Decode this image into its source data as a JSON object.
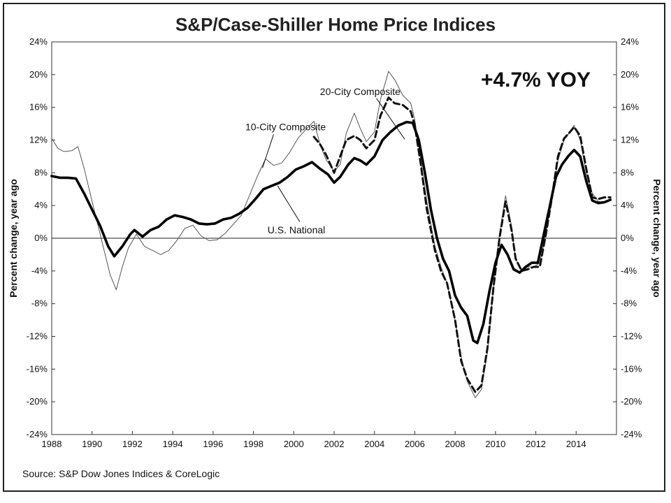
{
  "source": "Source: S&P Dow Jones Indices & CoreLogic",
  "chart_data": {
    "type": "line",
    "title": "S&P/Case-Shiller Home Price Indices",
    "ylabel_left": "Percent change, year ago",
    "ylabel_right": "Percent change, year ago",
    "xlabel": "",
    "xlim": [
      1988,
      2016
    ],
    "ylim": [
      -24,
      24
    ],
    "x_ticks": [
      "1988",
      "1990",
      "1992",
      "1994",
      "1996",
      "1998",
      "2000",
      "2002",
      "2004",
      "2006",
      "2008",
      "2010",
      "2012",
      "2014"
    ],
    "y_ticks": [
      "24%",
      "20%",
      "16%",
      "12%",
      "8%",
      "4%",
      "0%",
      "-4%",
      "-8%",
      "-12%",
      "-16%",
      "-20%",
      "-24%"
    ],
    "callout": "+4.7% YOY",
    "zero_line": true,
    "grid": false,
    "series": [
      {
        "name": "10-City Composite",
        "style": "thin",
        "color": "#555555",
        "points": [
          [
            1988.0,
            12.2
          ],
          [
            1988.3,
            11.0
          ],
          [
            1988.6,
            10.6
          ],
          [
            1989.0,
            10.7
          ],
          [
            1989.3,
            11.2
          ],
          [
            1989.6,
            8.6
          ],
          [
            1990.0,
            4.5
          ],
          [
            1990.3,
            1.5
          ],
          [
            1990.6,
            -1.5
          ],
          [
            1990.9,
            -4.5
          ],
          [
            1991.2,
            -6.3
          ],
          [
            1991.5,
            -3.5
          ],
          [
            1991.8,
            -1.2
          ],
          [
            1992.2,
            0.5
          ],
          [
            1992.6,
            -1.0
          ],
          [
            1993.0,
            -1.5
          ],
          [
            1993.4,
            -2.0
          ],
          [
            1993.8,
            -1.5
          ],
          [
            1994.2,
            -0.3
          ],
          [
            1994.6,
            1.2
          ],
          [
            1995.0,
            1.6
          ],
          [
            1995.4,
            0.3
          ],
          [
            1995.8,
            -0.3
          ],
          [
            1996.2,
            -0.2
          ],
          [
            1996.6,
            0.6
          ],
          [
            1997.0,
            1.7
          ],
          [
            1997.4,
            2.8
          ],
          [
            1997.8,
            5.2
          ],
          [
            1998.2,
            7.6
          ],
          [
            1998.6,
            9.7
          ],
          [
            1999.0,
            8.9
          ],
          [
            1999.4,
            9.2
          ],
          [
            1999.8,
            10.5
          ],
          [
            2000.2,
            12.2
          ],
          [
            2000.6,
            13.3
          ],
          [
            2001.0,
            14.3
          ],
          [
            2001.3,
            11.5
          ],
          [
            2001.6,
            9.6
          ],
          [
            2002.0,
            8.2
          ],
          [
            2002.3,
            9.0
          ],
          [
            2002.6,
            12.8
          ],
          [
            2003.0,
            15.3
          ],
          [
            2003.3,
            13.4
          ],
          [
            2003.6,
            11.8
          ],
          [
            2004.0,
            13.0
          ],
          [
            2004.3,
            17.0
          ],
          [
            2004.7,
            20.4
          ],
          [
            2005.0,
            19.4
          ],
          [
            2005.4,
            17.5
          ],
          [
            2005.8,
            16.5
          ],
          [
            2006.0,
            14.5
          ],
          [
            2006.3,
            9.5
          ],
          [
            2006.6,
            4.5
          ],
          [
            2007.0,
            -1.0
          ],
          [
            2007.3,
            -3.5
          ],
          [
            2007.6,
            -5.5
          ],
          [
            2008.0,
            -10.0
          ],
          [
            2008.3,
            -14.5
          ],
          [
            2008.6,
            -17.5
          ],
          [
            2009.0,
            -19.5
          ],
          [
            2009.3,
            -18.5
          ],
          [
            2009.6,
            -14.0
          ],
          [
            2009.9,
            -6.0
          ],
          [
            2010.2,
            0.5
          ],
          [
            2010.5,
            5.2
          ],
          [
            2010.8,
            1.5
          ],
          [
            2011.0,
            -2.5
          ],
          [
            2011.3,
            -4.0
          ],
          [
            2011.6,
            -3.5
          ],
          [
            2011.9,
            -3.5
          ],
          [
            2012.2,
            -3.0
          ],
          [
            2012.5,
            0.5
          ],
          [
            2012.8,
            5.0
          ],
          [
            2013.1,
            9.5
          ],
          [
            2013.4,
            12.0
          ],
          [
            2013.7,
            13.0
          ],
          [
            2013.9,
            13.8
          ],
          [
            2014.2,
            12.0
          ],
          [
            2014.5,
            8.0
          ],
          [
            2014.8,
            5.5
          ],
          [
            2015.1,
            4.5
          ],
          [
            2015.4,
            4.4
          ],
          [
            2015.7,
            4.6
          ]
        ]
      },
      {
        "name": "20-City Composite",
        "style": "dashed",
        "color": "#111111",
        "points": [
          [
            2001.0,
            12.4
          ],
          [
            2001.3,
            11.5
          ],
          [
            2001.6,
            10.2
          ],
          [
            2002.0,
            8.0
          ],
          [
            2002.3,
            10.0
          ],
          [
            2002.6,
            12.0
          ],
          [
            2003.0,
            12.5
          ],
          [
            2003.3,
            12.0
          ],
          [
            2003.6,
            11.0
          ],
          [
            2004.0,
            12.0
          ],
          [
            2004.3,
            15.0
          ],
          [
            2004.7,
            17.2
          ],
          [
            2005.0,
            16.5
          ],
          [
            2005.4,
            16.3
          ],
          [
            2005.8,
            15.5
          ],
          [
            2006.0,
            13.8
          ],
          [
            2006.3,
            9.0
          ],
          [
            2006.6,
            3.5
          ],
          [
            2007.0,
            -1.5
          ],
          [
            2007.3,
            -4.0
          ],
          [
            2007.6,
            -5.5
          ],
          [
            2008.0,
            -10.0
          ],
          [
            2008.3,
            -15.0
          ],
          [
            2008.6,
            -17.2
          ],
          [
            2009.0,
            -18.8
          ],
          [
            2009.3,
            -18.0
          ],
          [
            2009.6,
            -13.5
          ],
          [
            2009.9,
            -6.0
          ],
          [
            2010.2,
            0.0
          ],
          [
            2010.5,
            4.5
          ],
          [
            2010.8,
            1.0
          ],
          [
            2011.0,
            -2.5
          ],
          [
            2011.3,
            -4.0
          ],
          [
            2011.6,
            -3.8
          ],
          [
            2011.9,
            -3.5
          ],
          [
            2012.2,
            -3.5
          ],
          [
            2012.5,
            0.5
          ],
          [
            2012.8,
            5.0
          ],
          [
            2013.1,
            10.0
          ],
          [
            2013.4,
            12.2
          ],
          [
            2013.7,
            13.0
          ],
          [
            2013.9,
            13.6
          ],
          [
            2014.2,
            12.5
          ],
          [
            2014.5,
            8.5
          ],
          [
            2014.8,
            5.0
          ],
          [
            2015.1,
            4.8
          ],
          [
            2015.4,
            5.0
          ],
          [
            2015.7,
            5.0
          ]
        ]
      },
      {
        "name": "U.S. National",
        "style": "thick",
        "color": "#000000",
        "points": [
          [
            1988.0,
            7.6
          ],
          [
            1988.4,
            7.4
          ],
          [
            1988.8,
            7.4
          ],
          [
            1989.2,
            7.3
          ],
          [
            1989.6,
            5.5
          ],
          [
            1990.0,
            3.5
          ],
          [
            1990.4,
            1.5
          ],
          [
            1990.8,
            -1.0
          ],
          [
            1991.1,
            -2.2
          ],
          [
            1991.5,
            -1.0
          ],
          [
            1991.9,
            0.5
          ],
          [
            1992.1,
            1.0
          ],
          [
            1992.5,
            0.2
          ],
          [
            1992.9,
            1.0
          ],
          [
            1993.3,
            1.4
          ],
          [
            1993.7,
            2.3
          ],
          [
            1994.1,
            2.8
          ],
          [
            1994.5,
            2.6
          ],
          [
            1994.9,
            2.3
          ],
          [
            1995.3,
            1.8
          ],
          [
            1995.7,
            1.7
          ],
          [
            1996.1,
            1.8
          ],
          [
            1996.5,
            2.3
          ],
          [
            1996.9,
            2.5
          ],
          [
            1997.3,
            3.0
          ],
          [
            1997.7,
            3.7
          ],
          [
            1998.1,
            4.8
          ],
          [
            1998.5,
            6.0
          ],
          [
            1998.9,
            6.4
          ],
          [
            1999.3,
            6.8
          ],
          [
            1999.7,
            7.5
          ],
          [
            2000.1,
            8.4
          ],
          [
            2000.5,
            8.8
          ],
          [
            2000.9,
            9.3
          ],
          [
            2001.3,
            8.5
          ],
          [
            2001.7,
            7.8
          ],
          [
            2002.0,
            6.8
          ],
          [
            2002.3,
            7.5
          ],
          [
            2002.7,
            9.0
          ],
          [
            2003.0,
            9.8
          ],
          [
            2003.3,
            9.5
          ],
          [
            2003.6,
            9.0
          ],
          [
            2004.0,
            10.0
          ],
          [
            2004.4,
            12.0
          ],
          [
            2004.8,
            13.0
          ],
          [
            2005.2,
            13.8
          ],
          [
            2005.6,
            14.2
          ],
          [
            2005.9,
            14.1
          ],
          [
            2006.2,
            12.0
          ],
          [
            2006.5,
            8.0
          ],
          [
            2006.8,
            3.5
          ],
          [
            2007.1,
            0.0
          ],
          [
            2007.4,
            -2.5
          ],
          [
            2007.7,
            -4.0
          ],
          [
            2008.0,
            -7.0
          ],
          [
            2008.3,
            -8.5
          ],
          [
            2008.6,
            -9.5
          ],
          [
            2008.9,
            -12.5
          ],
          [
            2009.1,
            -12.8
          ],
          [
            2009.4,
            -10.5
          ],
          [
            2009.7,
            -6.5
          ],
          [
            2010.0,
            -3.0
          ],
          [
            2010.3,
            -0.8
          ],
          [
            2010.6,
            -2.0
          ],
          [
            2010.9,
            -3.8
          ],
          [
            2011.2,
            -4.2
          ],
          [
            2011.5,
            -3.5
          ],
          [
            2011.8,
            -3.0
          ],
          [
            2012.1,
            -3.0
          ],
          [
            2012.4,
            0.5
          ],
          [
            2012.7,
            4.0
          ],
          [
            2013.0,
            7.5
          ],
          [
            2013.3,
            9.0
          ],
          [
            2013.6,
            10.0
          ],
          [
            2013.9,
            10.8
          ],
          [
            2014.2,
            10.0
          ],
          [
            2014.5,
            7.0
          ],
          [
            2014.8,
            4.6
          ],
          [
            2015.1,
            4.3
          ],
          [
            2015.4,
            4.4
          ],
          [
            2015.7,
            4.7
          ]
        ]
      }
    ]
  }
}
